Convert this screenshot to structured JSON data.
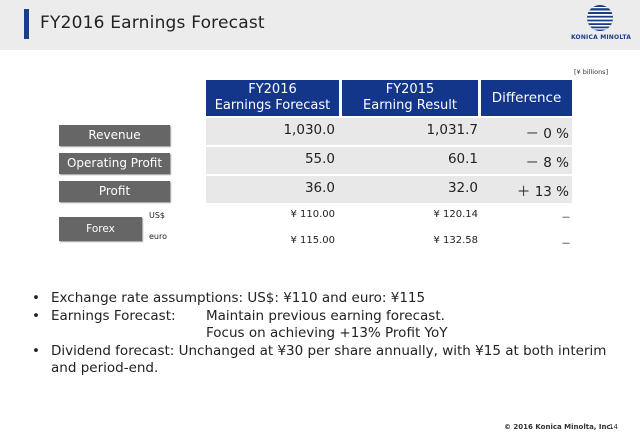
{
  "header": {
    "title": "FY2016 Earnings Forecast"
  },
  "logo": {
    "text": "KONICA MINOLTA",
    "color": "#1a3d86"
  },
  "table": {
    "unit": "[¥ billions]",
    "columns": [
      {
        "line1": "FY2016",
        "line2": "Earnings Forecast"
      },
      {
        "line1": "FY2015",
        "line2": "Earning Result"
      },
      {
        "line1": "Difference",
        "line2": ""
      }
    ],
    "rows": [
      {
        "label": "Revenue",
        "forecast": "1,030.0",
        "result": "1,031.7",
        "difference": "－ 0 %"
      },
      {
        "label": "Operating Profit",
        "forecast": "55.0",
        "result": "60.1",
        "difference": "－ 8 %"
      },
      {
        "label": "Profit",
        "forecast": "36.0",
        "result": "32.0",
        "difference": "＋ 13 %"
      }
    ],
    "forex": {
      "label": "Forex",
      "rows": [
        {
          "currency": "US$",
          "forecast": "¥ 110.00",
          "result": "¥ 120.14",
          "difference": "－"
        },
        {
          "currency": "euro",
          "forecast": "¥ 115.00",
          "result": "¥ 132.58",
          "difference": "－"
        }
      ]
    },
    "header_color": "#13358a",
    "label_color": "#666666"
  },
  "bullets": {
    "exchange": "Exchange rate assumptions: US$: ¥110 and euro: ¥115",
    "earnings_label": "Earnings Forecast:",
    "earnings_text": "Maintain previous earning forecast.",
    "earnings_text2": "Focus on achieving +13% Profit YoY",
    "dividend": "Dividend forecast: Unchanged at ¥30 per share annually, with ¥15 at both interim and period-end."
  },
  "footer": {
    "copyright": "© 2016 Konica Minolta, Inc.",
    "page": "14"
  }
}
